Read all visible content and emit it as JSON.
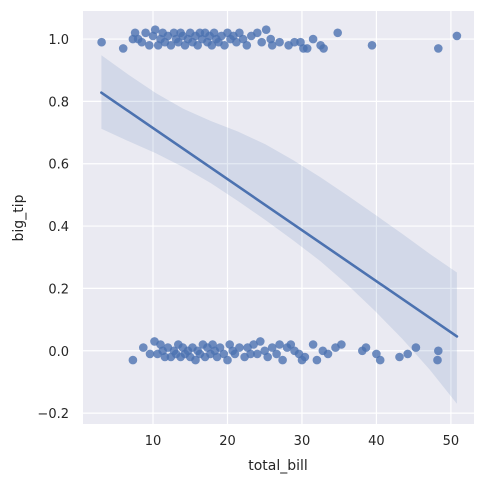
{
  "chart_data": {
    "type": "scatter",
    "title": "",
    "xlabel": "total_bill",
    "ylabel": "big_tip",
    "xlim": [
      0.6,
      53.1
    ],
    "ylim": [
      -0.235,
      1.09
    ],
    "x_ticks": [
      10,
      20,
      30,
      40,
      50
    ],
    "y_ticks": [
      -0.2,
      0.0,
      0.2,
      0.4,
      0.6,
      0.8,
      1.0
    ],
    "y_tick_labels": [
      "−0.2",
      "0.0",
      "0.2",
      "0.4",
      "0.6",
      "0.8",
      "1.0"
    ],
    "grid": true,
    "legend": "none",
    "colors": {
      "background": "#eaeaf2",
      "grid": "#ffffff",
      "points": "#4c72b0",
      "line": "#4c72b0",
      "band": "#4c72b0"
    },
    "series": [
      {
        "values": [
          [
            3.1,
            0.99
          ],
          [
            6.0,
            0.97
          ],
          [
            7.3,
            1.0
          ],
          [
            7.6,
            1.02
          ],
          [
            8.0,
            1.0
          ],
          [
            8.5,
            0.99
          ],
          [
            9.0,
            1.02
          ],
          [
            9.5,
            0.98
          ],
          [
            10.0,
            1.01
          ],
          [
            10.3,
            1.03
          ],
          [
            10.7,
            0.98
          ],
          [
            11.0,
            1.0
          ],
          [
            11.3,
            1.02
          ],
          [
            11.6,
            0.99
          ],
          [
            12.0,
            1.01
          ],
          [
            12.4,
            0.98
          ],
          [
            12.8,
            1.02
          ],
          [
            13.1,
            1.0
          ],
          [
            13.4,
            0.99
          ],
          [
            13.7,
            1.02
          ],
          [
            14.0,
            1.01
          ],
          [
            14.3,
            0.98
          ],
          [
            14.7,
            1.0
          ],
          [
            15.0,
            1.02
          ],
          [
            15.3,
            0.99
          ],
          [
            15.7,
            1.01
          ],
          [
            16.0,
            0.98
          ],
          [
            16.3,
            1.02
          ],
          [
            16.6,
            1.0
          ],
          [
            17.0,
            1.02
          ],
          [
            17.3,
            0.99
          ],
          [
            17.6,
            1.01
          ],
          [
            17.9,
            0.98
          ],
          [
            18.2,
            1.02
          ],
          [
            18.5,
            1.0
          ],
          [
            18.8,
            0.99
          ],
          [
            19.2,
            1.01
          ],
          [
            19.6,
            0.98
          ],
          [
            20.0,
            1.02
          ],
          [
            20.4,
            1.0
          ],
          [
            20.8,
            1.01
          ],
          [
            21.2,
            0.99
          ],
          [
            21.6,
            1.02
          ],
          [
            22.1,
            1.0
          ],
          [
            22.6,
            0.98
          ],
          [
            23.2,
            1.01
          ],
          [
            24.0,
            1.02
          ],
          [
            24.6,
            0.99
          ],
          [
            25.2,
            1.03
          ],
          [
            25.8,
            1.0
          ],
          [
            26.0,
            0.98
          ],
          [
            27.0,
            0.99
          ],
          [
            28.2,
            0.98
          ],
          [
            29.0,
            0.99
          ],
          [
            29.8,
            0.99
          ],
          [
            30.2,
            0.97
          ],
          [
            30.7,
            0.97
          ],
          [
            31.5,
            1.0
          ],
          [
            32.5,
            0.98
          ],
          [
            32.9,
            0.97
          ],
          [
            34.8,
            1.02
          ],
          [
            39.4,
            0.98
          ],
          [
            48.3,
            0.97
          ],
          [
            50.8,
            1.01
          ],
          [
            7.3,
            -0.03
          ],
          [
            8.7,
            0.01
          ],
          [
            9.6,
            -0.01
          ],
          [
            10.2,
            0.03
          ],
          [
            10.6,
            -0.01
          ],
          [
            11.0,
            0.02
          ],
          [
            11.3,
            0.0
          ],
          [
            11.6,
            -0.02
          ],
          [
            12.0,
            0.01
          ],
          [
            12.4,
            -0.02
          ],
          [
            12.8,
            0.0
          ],
          [
            13.1,
            -0.01
          ],
          [
            13.4,
            0.02
          ],
          [
            13.7,
            -0.02
          ],
          [
            14.0,
            0.01
          ],
          [
            14.3,
            -0.01
          ],
          [
            14.7,
            0.0
          ],
          [
            15.0,
            -0.02
          ],
          [
            15.3,
            0.01
          ],
          [
            15.7,
            -0.03
          ],
          [
            16.0,
            0.0
          ],
          [
            16.3,
            -0.01
          ],
          [
            16.7,
            0.02
          ],
          [
            17.0,
            -0.02
          ],
          [
            17.3,
            0.01
          ],
          [
            17.7,
            -0.01
          ],
          [
            18.0,
            0.02
          ],
          [
            18.3,
            0.0
          ],
          [
            18.6,
            -0.02
          ],
          [
            19.0,
            0.01
          ],
          [
            19.5,
            -0.01
          ],
          [
            20.0,
            -0.03
          ],
          [
            20.3,
            0.02
          ],
          [
            20.7,
            0.0
          ],
          [
            21.0,
            -0.01
          ],
          [
            21.6,
            0.01
          ],
          [
            22.3,
            -0.02
          ],
          [
            22.7,
            0.01
          ],
          [
            23.1,
            -0.01
          ],
          [
            23.5,
            0.02
          ],
          [
            24.0,
            -0.01
          ],
          [
            24.4,
            0.03
          ],
          [
            25.0,
            0.0
          ],
          [
            25.4,
            -0.02
          ],
          [
            26.0,
            0.01
          ],
          [
            26.6,
            -0.01
          ],
          [
            27.0,
            0.02
          ],
          [
            27.4,
            -0.03
          ],
          [
            28.0,
            0.01
          ],
          [
            28.5,
            0.02
          ],
          [
            29.0,
            0.0
          ],
          [
            29.6,
            -0.01
          ],
          [
            30.0,
            -0.03
          ],
          [
            30.4,
            -0.02
          ],
          [
            31.5,
            0.02
          ],
          [
            32.0,
            -0.03
          ],
          [
            32.8,
            0.0
          ],
          [
            33.5,
            -0.01
          ],
          [
            34.5,
            0.01
          ],
          [
            35.3,
            0.02
          ],
          [
            38.1,
            0.0
          ],
          [
            38.6,
            0.01
          ],
          [
            40.0,
            -0.01
          ],
          [
            40.5,
            -0.03
          ],
          [
            43.1,
            -0.02
          ],
          [
            44.2,
            -0.01
          ],
          [
            45.3,
            0.01
          ],
          [
            48.2,
            -0.03
          ],
          [
            48.3,
            0.0
          ]
        ]
      }
    ],
    "regression": {
      "x": [
        3.07,
        50.81
      ],
      "y": [
        0.828,
        0.046
      ],
      "ci_upper": [
        0.948,
        0.885,
        0.826,
        0.776,
        0.737,
        0.703,
        0.662,
        0.612,
        0.557,
        0.498,
        0.437,
        0.375,
        0.311,
        0.251
      ],
      "ci_lower": [
        0.712,
        0.672,
        0.633,
        0.589,
        0.538,
        0.48,
        0.419,
        0.355,
        0.288,
        0.212,
        0.128,
        0.038,
        -0.06,
        -0.17
      ],
      "ci_x": [
        3.07,
        6.74,
        10.41,
        14.09,
        17.76,
        21.43,
        25.1,
        28.78,
        32.45,
        36.12,
        39.79,
        43.47,
        47.14,
        50.81
      ]
    }
  }
}
